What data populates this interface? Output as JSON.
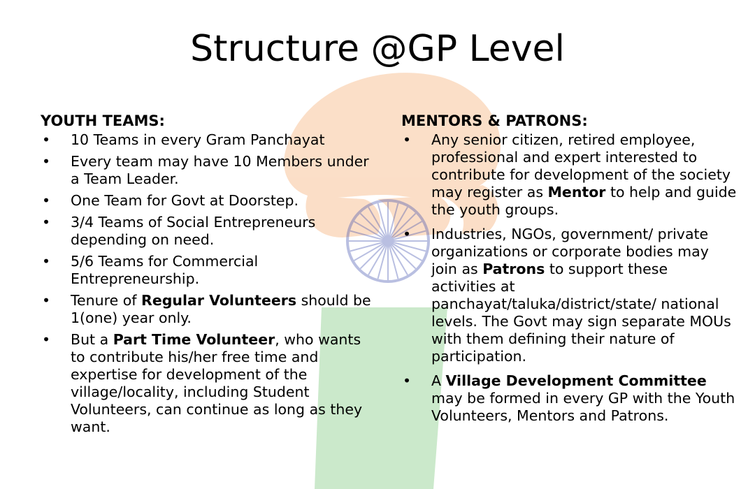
{
  "slide": {
    "title": "Structure @GP Level"
  },
  "colors": {
    "saffron": "#f7c39a",
    "green": "#a9d6a4",
    "chakra": "#9aa2cf",
    "text": "#000000"
  },
  "left": {
    "heading": "YOUTH TEAMS:",
    "bullet_glyph": "•",
    "items": [
      {
        "parts": [
          "10 Teams in every Gram Panchayat"
        ]
      },
      {
        "parts": [
          "Every team may have 10 Members under a Team Leader."
        ]
      },
      {
        "parts": [
          "One Team for Govt at Doorstep."
        ]
      },
      {
        "parts": [
          "3/4 Teams of Social Entrepreneurs depending on need."
        ]
      },
      {
        "parts": [
          "5/6 Teams for Commercial Entrepreneurship."
        ]
      },
      {
        "parts": [
          "Tenure of ",
          "Regular Volunteers",
          " should be 1(one) year only."
        ]
      },
      {
        "parts": [
          "But a ",
          "Part Time Volunteer",
          ", who wants to contribute his/her free time and expertise for development of the village/locality, including Student Volunteers, can continue as long as they want."
        ]
      }
    ]
  },
  "right": {
    "heading": "MENTORS & PATRONS:",
    "bullet_glyph": "•",
    "items": [
      {
        "parts": [
          "Any senior citizen, retired employee, professional and expert interested to contribute for development of the society may register as ",
          "Mentor",
          " to help and guide the youth groups."
        ]
      },
      {
        "parts": [
          "Industries, NGOs, government/ private organizations or corporate bodies may join as ",
          "Patrons",
          " to support these activities at panchayat/taluka/district/state/ national levels. The Govt may sign separate MOUs with them defining their nature of participation."
        ]
      },
      {
        "parts": [
          "A ",
          "Village Development Committee",
          " may be formed in every GP with the Youth Volunteers, Mentors and Patrons."
        ]
      }
    ]
  }
}
